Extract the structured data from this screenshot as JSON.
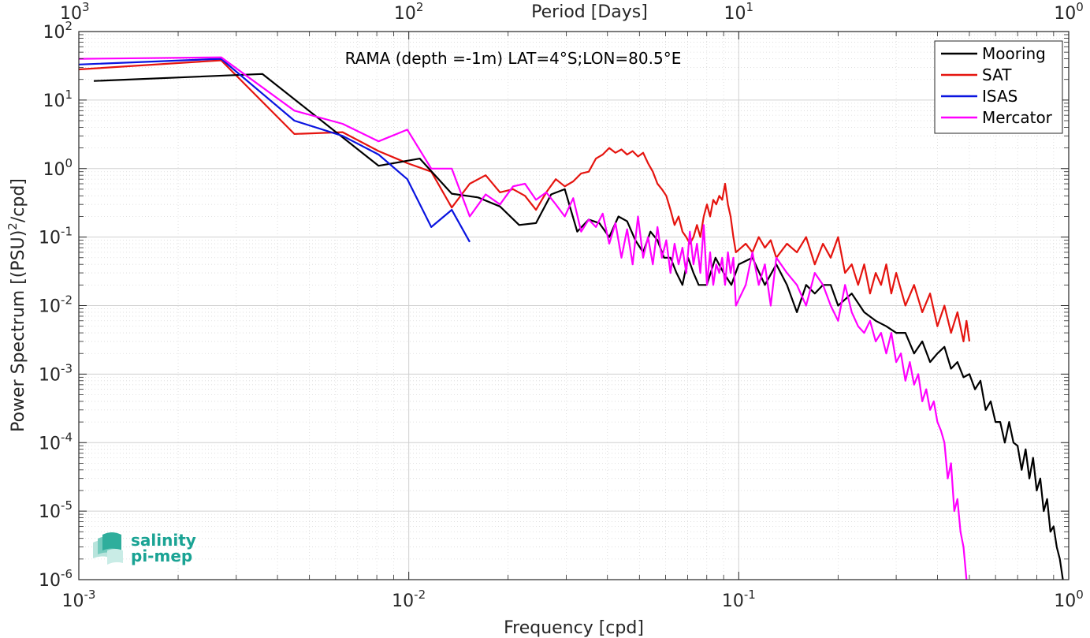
{
  "chart_data": {
    "type": "line",
    "title": "RAMA (depth =-1m) LAT=4°S;LON=80.5°E",
    "xlabel": "Frequency [cpd]",
    "ylabel": "Power Spectrum [(PSU)²/cpd]",
    "ylabel_parts": {
      "pre": "Power Spectrum [(PSU)",
      "sup": "2",
      "post": "/cpd]"
    },
    "top_xlabel": "Period [Days]",
    "x_scale": "log",
    "y_scale": "log",
    "xlim": [
      0.001,
      1
    ],
    "ylim": [
      1e-06,
      100
    ],
    "x_ticks": [
      {
        "base": "10",
        "exp": "-3"
      },
      {
        "base": "10",
        "exp": "-2"
      },
      {
        "base": "10",
        "exp": "-1"
      },
      {
        "base": "10",
        "exp": "0"
      }
    ],
    "y_ticks": [
      {
        "base": "10",
        "exp": "-6"
      },
      {
        "base": "10",
        "exp": "-5"
      },
      {
        "base": "10",
        "exp": "-4"
      },
      {
        "base": "10",
        "exp": "-3"
      },
      {
        "base": "10",
        "exp": "-2"
      },
      {
        "base": "10",
        "exp": "-1"
      },
      {
        "base": "10",
        "exp": "0"
      },
      {
        "base": "10",
        "exp": "1"
      },
      {
        "base": "10",
        "exp": "2"
      }
    ],
    "top_ticks": [
      {
        "base": "10",
        "exp": "3"
      },
      {
        "base": "10",
        "exp": "2"
      },
      {
        "base": "10",
        "exp": "1"
      },
      {
        "base": "10",
        "exp": "0"
      }
    ],
    "grid": true,
    "legend_position": "top-right",
    "series": [
      {
        "name": "Mooring",
        "color": "#000000",
        "x": [
          0.00111,
          0.0036,
          0.0081,
          0.0108,
          0.0135,
          0.0162,
          0.0189,
          0.0216,
          0.0243,
          0.027,
          0.0297,
          0.0324,
          0.0351,
          0.0378,
          0.0405,
          0.0432,
          0.0459,
          0.0486,
          0.0513,
          0.054,
          0.0567,
          0.0594,
          0.0621,
          0.0648,
          0.0675,
          0.0702,
          0.0729,
          0.0756,
          0.08,
          0.085,
          0.09,
          0.095,
          0.1,
          0.11,
          0.12,
          0.13,
          0.14,
          0.15,
          0.16,
          0.17,
          0.18,
          0.19,
          0.2,
          0.22,
          0.24,
          0.26,
          0.28,
          0.3,
          0.32,
          0.34,
          0.36,
          0.38,
          0.4,
          0.42,
          0.44,
          0.46,
          0.48,
          0.5,
          0.52,
          0.54,
          0.56,
          0.58,
          0.6,
          0.62,
          0.64,
          0.66,
          0.68,
          0.7,
          0.72,
          0.74,
          0.76,
          0.78,
          0.8,
          0.82,
          0.84,
          0.86,
          0.88,
          0.9,
          0.92,
          0.94,
          0.96
        ],
        "y": [
          19,
          24,
          1.1,
          1.4,
          0.43,
          0.38,
          0.28,
          0.15,
          0.16,
          0.42,
          0.5,
          0.12,
          0.18,
          0.16,
          0.1,
          0.2,
          0.17,
          0.09,
          0.06,
          0.12,
          0.09,
          0.05,
          0.05,
          0.03,
          0.02,
          0.05,
          0.03,
          0.02,
          0.02,
          0.05,
          0.03,
          0.02,
          0.04,
          0.05,
          0.02,
          0.04,
          0.02,
          0.008,
          0.02,
          0.015,
          0.02,
          0.02,
          0.01,
          0.015,
          0.008,
          0.006,
          0.005,
          0.004,
          0.004,
          0.002,
          0.003,
          0.0015,
          0.002,
          0.0025,
          0.0012,
          0.0015,
          0.0009,
          0.001,
          0.0006,
          0.0008,
          0.0003,
          0.0004,
          0.0002,
          0.0002,
          0.0001,
          0.0002,
          0.0001,
          9e-05,
          4e-05,
          8e-05,
          3e-05,
          6e-05,
          2e-05,
          3e-05,
          1e-05,
          1.5e-05,
          5e-06,
          6e-06,
          3e-06,
          2e-06,
          1e-06
        ]
      },
      {
        "name": "SAT",
        "color": "#e5140f",
        "x": [
          0.001,
          0.0027,
          0.0045,
          0.0063,
          0.0081,
          0.0099,
          0.0117,
          0.0135,
          0.0153,
          0.0171,
          0.0189,
          0.0207,
          0.0225,
          0.0243,
          0.0261,
          0.0279,
          0.0297,
          0.0315,
          0.0333,
          0.0351,
          0.0369,
          0.0387,
          0.0405,
          0.0423,
          0.0441,
          0.0459,
          0.0477,
          0.0495,
          0.0513,
          0.0531,
          0.0549,
          0.0567,
          0.0585,
          0.0603,
          0.0621,
          0.0639,
          0.0657,
          0.0675,
          0.0693,
          0.0711,
          0.0729,
          0.0747,
          0.0765,
          0.0783,
          0.0801,
          0.0819,
          0.0837,
          0.0855,
          0.0873,
          0.0891,
          0.0909,
          0.0927,
          0.0945,
          0.0963,
          0.098,
          0.105,
          0.11,
          0.115,
          0.12,
          0.125,
          0.13,
          0.14,
          0.15,
          0.16,
          0.17,
          0.18,
          0.19,
          0.2,
          0.21,
          0.22,
          0.23,
          0.24,
          0.25,
          0.26,
          0.27,
          0.28,
          0.29,
          0.3,
          0.32,
          0.34,
          0.36,
          0.38,
          0.4,
          0.42,
          0.44,
          0.46,
          0.48,
          0.49,
          0.5
        ],
        "y": [
          28,
          38,
          3.2,
          3.4,
          1.8,
          1.2,
          0.9,
          0.27,
          0.6,
          0.8,
          0.45,
          0.5,
          0.4,
          0.25,
          0.45,
          0.7,
          0.55,
          0.65,
          0.85,
          0.9,
          1.4,
          1.6,
          2.0,
          1.7,
          1.9,
          1.6,
          1.8,
          1.5,
          1.7,
          1.2,
          0.9,
          0.6,
          0.5,
          0.4,
          0.25,
          0.15,
          0.2,
          0.12,
          0.1,
          0.08,
          0.1,
          0.15,
          0.1,
          0.2,
          0.3,
          0.2,
          0.35,
          0.3,
          0.4,
          0.35,
          0.6,
          0.3,
          0.2,
          0.1,
          0.06,
          0.08,
          0.06,
          0.1,
          0.07,
          0.09,
          0.05,
          0.08,
          0.06,
          0.1,
          0.04,
          0.08,
          0.05,
          0.1,
          0.03,
          0.04,
          0.02,
          0.04,
          0.015,
          0.03,
          0.02,
          0.04,
          0.015,
          0.03,
          0.01,
          0.02,
          0.008,
          0.015,
          0.005,
          0.01,
          0.004,
          0.008,
          0.003,
          0.006,
          0.003
        ]
      },
      {
        "name": "ISAS",
        "color": "#0a14e0",
        "x": [
          0.001,
          0.0027,
          0.0045,
          0.0063,
          0.0081,
          0.0099,
          0.0117,
          0.0135,
          0.0153
        ],
        "y": [
          33,
          40,
          5.0,
          3.0,
          1.6,
          0.7,
          0.14,
          0.25,
          0.085
        ]
      },
      {
        "name": "Mercator",
        "color": "#ff00ff",
        "x": [
          0.001,
          0.0027,
          0.0045,
          0.0063,
          0.0081,
          0.0099,
          0.0117,
          0.0135,
          0.0153,
          0.0171,
          0.0189,
          0.0207,
          0.0225,
          0.0243,
          0.0261,
          0.0279,
          0.0297,
          0.0315,
          0.0333,
          0.0351,
          0.0369,
          0.0387,
          0.0405,
          0.0423,
          0.0441,
          0.0459,
          0.0477,
          0.0495,
          0.0513,
          0.0531,
          0.0549,
          0.0567,
          0.0585,
          0.0603,
          0.0621,
          0.0639,
          0.0657,
          0.0675,
          0.0693,
          0.0711,
          0.0729,
          0.0747,
          0.0765,
          0.0783,
          0.0801,
          0.0819,
          0.0837,
          0.0855,
          0.0873,
          0.0891,
          0.0909,
          0.0927,
          0.0945,
          0.0963,
          0.098,
          0.105,
          0.11,
          0.115,
          0.12,
          0.125,
          0.13,
          0.14,
          0.15,
          0.16,
          0.17,
          0.18,
          0.19,
          0.2,
          0.21,
          0.22,
          0.23,
          0.24,
          0.25,
          0.26,
          0.27,
          0.28,
          0.29,
          0.3,
          0.31,
          0.32,
          0.33,
          0.34,
          0.35,
          0.36,
          0.37,
          0.38,
          0.39,
          0.4,
          0.41,
          0.42,
          0.43,
          0.44,
          0.45,
          0.46,
          0.47,
          0.48,
          0.49
        ],
        "y": [
          40,
          42,
          7.0,
          4.5,
          2.5,
          3.7,
          1.0,
          1.0,
          0.2,
          0.42,
          0.3,
          0.55,
          0.6,
          0.35,
          0.45,
          0.3,
          0.2,
          0.37,
          0.12,
          0.18,
          0.14,
          0.22,
          0.08,
          0.16,
          0.05,
          0.13,
          0.04,
          0.2,
          0.05,
          0.1,
          0.04,
          0.14,
          0.05,
          0.09,
          0.03,
          0.08,
          0.04,
          0.07,
          0.03,
          0.12,
          0.04,
          0.08,
          0.03,
          0.15,
          0.02,
          0.06,
          0.02,
          0.04,
          0.03,
          0.05,
          0.02,
          0.06,
          0.03,
          0.05,
          0.01,
          0.02,
          0.06,
          0.02,
          0.04,
          0.01,
          0.05,
          0.03,
          0.02,
          0.01,
          0.03,
          0.02,
          0.01,
          0.006,
          0.02,
          0.008,
          0.005,
          0.004,
          0.006,
          0.003,
          0.004,
          0.002,
          0.004,
          0.0015,
          0.002,
          0.0008,
          0.0015,
          0.0007,
          0.001,
          0.0004,
          0.0006,
          0.0003,
          0.0004,
          0.0002,
          0.00015,
          0.0001,
          3e-05,
          5e-05,
          1e-05,
          1.5e-05,
          5e-06,
          3e-06,
          1e-06
        ]
      }
    ]
  },
  "logo": {
    "line1": "salinity",
    "line2": "pi-mep"
  }
}
